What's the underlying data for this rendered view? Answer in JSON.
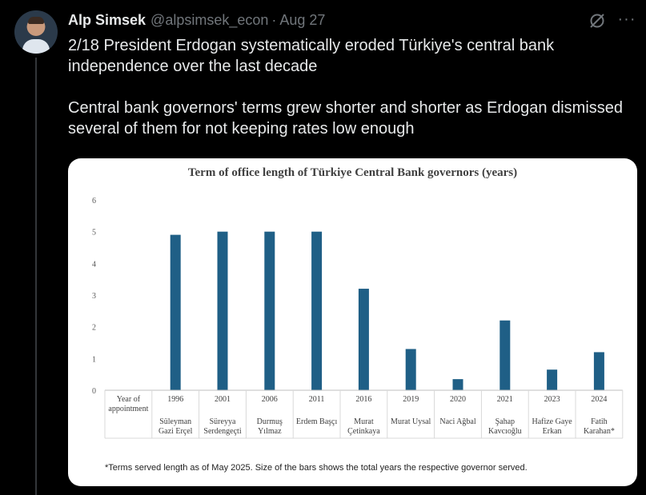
{
  "author": {
    "name": "Alp Simsek",
    "handle": "@alpsimsek_econ",
    "separator": "·",
    "date": "Aug 27"
  },
  "icons": {
    "grok": "grok-slash-icon",
    "more": "more-options-icon",
    "avatar": "profile-avatar"
  },
  "tweet": {
    "paragraph1": "2/18 President Erdogan systematically eroded Türkiye's central bank independence over the last decade",
    "paragraph2": "Central bank governors' terms grew shorter and shorter as Erdogan dismissed several of them for not keeping rates low enough"
  },
  "colors": {
    "bar": "#1f5f86",
    "background": "#000000",
    "text": "#e7e9ea",
    "muted": "#71767b"
  },
  "chart_data": {
    "type": "bar",
    "title": "Term of office length of Türkiye Central Bank governors (years)",
    "row_header": "Year of appointment",
    "categories": [
      "1996",
      "2001",
      "2006",
      "2011",
      "2016",
      "2019",
      "2020",
      "2021",
      "2023",
      "2024"
    ],
    "governors": [
      "Süleyman Gazi Erçel",
      "Süreyya Serdengeçti",
      "Durmuş Yılmaz",
      "Erdem Başçı",
      "Murat Çetinkaya",
      "Murat Uysal",
      "Naci Ağbal",
      "Şahap Kavcıoğlu",
      "Hafize Gaye Erkan",
      "Fatih Karahan*"
    ],
    "values": [
      4.9,
      5.0,
      5.0,
      5.0,
      3.2,
      1.3,
      0.35,
      2.2,
      0.65,
      1.2
    ],
    "ylim": [
      0,
      6
    ],
    "yticks": [
      "0",
      "1",
      "2",
      "3",
      "4",
      "5",
      "6"
    ],
    "grid": false,
    "footnote": "*Terms served  length as of May 2025. Size of the bars shows the total  years the respective governor served."
  }
}
